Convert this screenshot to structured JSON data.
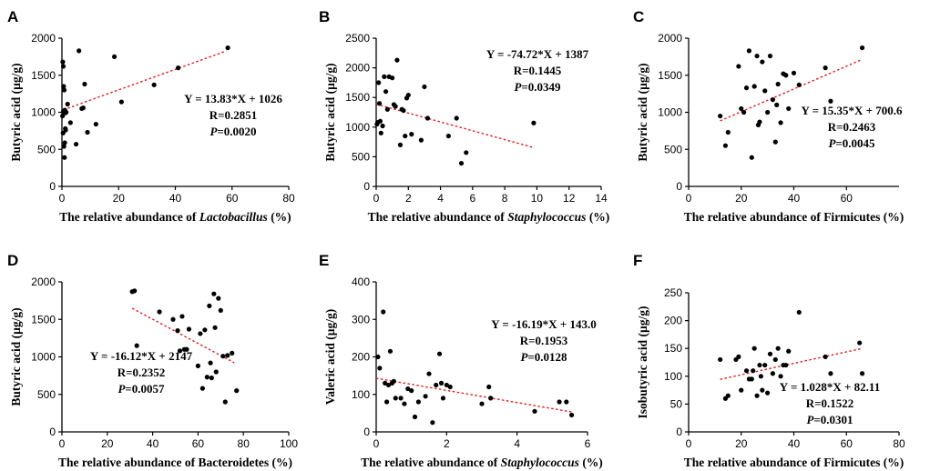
{
  "chart_data": [
    {
      "type": "scatter",
      "panel": "A",
      "xlabel_parts": [
        {
          "text": "The relative abundance of ",
          "italic": false
        },
        {
          "text": "Lactobacillus",
          "italic": true
        },
        {
          "text": " (%)",
          "italic": false
        }
      ],
      "ylabel": "Butyric acid (µg/g)",
      "xlim": [
        0,
        80
      ],
      "ylim": [
        0,
        2000
      ],
      "xticks": [
        0,
        20,
        40,
        60,
        80
      ],
      "yticks": [
        0,
        500,
        1000,
        1500,
        2000
      ],
      "equation": "Y = 13.83*X + 1026",
      "r_text": "R=0.2851",
      "p_value": "=0.0020",
      "fit": {
        "slope": 13.83,
        "intercept": 1026,
        "x_range": [
          0.5,
          58
        ]
      },
      "x": [
        0.3,
        0.5,
        0.6,
        0.8,
        1.0,
        1.1,
        1.2,
        0.4,
        0.7,
        0.9,
        1.5,
        0.2,
        2.0,
        1.0,
        3.0,
        5.0,
        6.0,
        7.0,
        7.5,
        8.0,
        9.0,
        12.0,
        18.5,
        21.0,
        32.5,
        41.0,
        58.5,
        0.5,
        1.3
      ],
      "y": [
        1680,
        1620,
        1350,
        1300,
        1030,
        990,
        780,
        720,
        540,
        390,
        1000,
        950,
        1110,
        590,
        860,
        570,
        1830,
        1050,
        1060,
        1380,
        730,
        840,
        1750,
        1140,
        1370,
        1600,
        1870,
        1010,
        760
      ]
    },
    {
      "type": "scatter",
      "panel": "B",
      "xlabel_parts": [
        {
          "text": "The relative abundance of ",
          "italic": false
        },
        {
          "text": "Staphylococcus",
          "italic": true
        },
        {
          "text": " (%)",
          "italic": false
        }
      ],
      "ylabel": "Butyric acid (µg/g)",
      "xlim": [
        0,
        14
      ],
      "ylim": [
        0,
        2500
      ],
      "xticks": [
        0,
        2,
        4,
        6,
        8,
        10,
        12,
        14
      ],
      "yticks": [
        0,
        500,
        1000,
        1500,
        2000,
        2500
      ],
      "equation": "Y = -74.72*X + 1387",
      "r_text": "R=0.1445",
      "p_value": "=0.0349",
      "fit": {
        "slope": -74.72,
        "intercept": 1387,
        "x_range": [
          0,
          9.8
        ]
      },
      "x": [
        0.05,
        0.1,
        0.15,
        0.2,
        0.25,
        0.3,
        0.5,
        0.6,
        0.7,
        0.8,
        1.0,
        1.2,
        1.3,
        1.5,
        1.6,
        1.7,
        1.8,
        1.9,
        2.0,
        2.2,
        2.8,
        3.0,
        3.2,
        4.5,
        5.0,
        5.3,
        5.6,
        9.8,
        0.4,
        1.1
      ],
      "y": [
        1050,
        1080,
        1750,
        1400,
        1100,
        900,
        1850,
        1600,
        1300,
        1850,
        1830,
        1350,
        2130,
        700,
        1300,
        1280,
        850,
        1490,
        1540,
        880,
        780,
        1680,
        1150,
        850,
        1150,
        390,
        570,
        1070,
        1020,
        1380
      ]
    },
    {
      "type": "scatter",
      "panel": "C",
      "xlabel_parts": [
        {
          "text": "The relative abundance of Firmicutes (%)",
          "italic": false
        }
      ],
      "ylabel": "Butyric acid (µg/g)",
      "xlim": [
        0,
        80
      ],
      "ylim": [
        0,
        2000
      ],
      "xticks": [
        0,
        20,
        40,
        60
      ],
      "yticks": [
        0,
        500,
        1000,
        1500,
        2000
      ],
      "equation": "Y = 15.35*X + 700.6",
      "r_text": "R=0.2463",
      "p_value": "=0.0045",
      "fit": {
        "slope": 15.35,
        "intercept": 700.6,
        "x_range": [
          12,
          66
        ]
      },
      "x": [
        12,
        14,
        15,
        19,
        20,
        22,
        23,
        24,
        25,
        26,
        26.5,
        27,
        28,
        29,
        30,
        31,
        32,
        33,
        34,
        35,
        36,
        37,
        38,
        40,
        42,
        52,
        54,
        66,
        21,
        33.5
      ],
      "y": [
        950,
        550,
        730,
        1620,
        1050,
        1330,
        1830,
        390,
        1350,
        1760,
        830,
        870,
        1680,
        1290,
        1000,
        1760,
        1170,
        600,
        1380,
        860,
        1520,
        1500,
        1050,
        1530,
        1370,
        1600,
        1150,
        1870,
        1000,
        1100
      ]
    },
    {
      "type": "scatter",
      "panel": "D",
      "xlabel_parts": [
        {
          "text": "The relative abundance of Bacteroidetes (%)",
          "italic": false
        }
      ],
      "ylabel": "Butyric acid (µg/g)",
      "xlim": [
        0,
        100
      ],
      "ylim": [
        0,
        2000
      ],
      "xticks": [
        0,
        20,
        40,
        60,
        80,
        100
      ],
      "yticks": [
        0,
        500,
        1000,
        1500,
        2000
      ],
      "equation": "Y = -16.12*X + 2147",
      "r_text": "R=0.2352",
      "p_value": "=0.0057",
      "fit": {
        "slope": -16.12,
        "intercept": 2147,
        "x_range": [
          31,
          76
        ]
      },
      "x": [
        31,
        32,
        33,
        43,
        49,
        51,
        52,
        53,
        54,
        55,
        56,
        60,
        62,
        63,
        64,
        65,
        66,
        67,
        67.5,
        68,
        69,
        70,
        71,
        72,
        73,
        75,
        77,
        61,
        65.5
      ],
      "y": [
        1870,
        1880,
        1150,
        1600,
        1500,
        1350,
        1080,
        1540,
        1100,
        1100,
        1370,
        880,
        580,
        1360,
        730,
        1680,
        720,
        1840,
        1390,
        800,
        1780,
        1620,
        1010,
        400,
        1020,
        1050,
        550,
        1310,
        920
      ]
    },
    {
      "type": "scatter",
      "panel": "E",
      "xlabel_parts": [
        {
          "text": "The relative abundance of ",
          "italic": false
        },
        {
          "text": "Staphylococcus",
          "italic": true
        },
        {
          "text": " (%)",
          "italic": false
        }
      ],
      "ylabel": "Valeric acid (µg/g)",
      "xlim": [
        0,
        6
      ],
      "ylim": [
        0,
        400
      ],
      "xticks": [
        0,
        2,
        4,
        6
      ],
      "yticks": [
        0,
        100,
        200,
        300,
        400
      ],
      "equation": "Y = -16.19*X + 143.0",
      "r_text": "R=0.1953",
      "p_value": "=0.0128",
      "fit": {
        "slope": -16.19,
        "intercept": 143.0,
        "x_range": [
          0,
          5.55
        ]
      },
      "x": [
        0.05,
        0.1,
        0.2,
        0.25,
        0.3,
        0.35,
        0.4,
        0.45,
        0.5,
        0.55,
        0.7,
        0.8,
        0.9,
        1.1,
        1.2,
        1.4,
        1.5,
        1.6,
        1.7,
        1.8,
        1.85,
        1.9,
        2.0,
        2.1,
        3.0,
        3.2,
        3.25,
        4.5,
        5.2,
        5.4,
        5.55,
        1.0
      ],
      "y": [
        200,
        170,
        320,
        130,
        80,
        125,
        215,
        130,
        135,
        90,
        90,
        75,
        115,
        40,
        80,
        95,
        155,
        25,
        125,
        208,
        130,
        90,
        125,
        120,
        75,
        120,
        90,
        55,
        80,
        80,
        45,
        110
      ]
    },
    {
      "type": "scatter",
      "panel": "F",
      "xlabel_parts": [
        {
          "text": "The relative abundance of Firmicutes (%)",
          "italic": false
        }
      ],
      "ylabel": "Isobutyric acid (µg/g)",
      "xlim": [
        0,
        80
      ],
      "ylim": [
        0,
        250
      ],
      "xticks": [
        0,
        20,
        40,
        60,
        80
      ],
      "yticks": [
        0,
        50,
        100,
        150,
        200,
        250
      ],
      "equation": "Y = 1.028*X + 82.11",
      "r_text": "R=0.1522",
      "p_value": "=0.0301",
      "fit": {
        "slope": 1.028,
        "intercept": 82.11,
        "x_range": [
          12,
          66
        ]
      },
      "x": [
        12,
        14,
        15,
        18,
        19,
        20,
        22,
        23,
        24,
        25,
        26,
        27,
        27.5,
        28,
        29,
        30,
        31,
        32,
        33,
        34,
        35,
        36,
        37,
        38,
        42,
        52,
        54,
        65,
        66,
        24.5
      ],
      "y": [
        130,
        60,
        65,
        130,
        135,
        75,
        110,
        95,
        95,
        150,
        65,
        120,
        100,
        75,
        120,
        70,
        140,
        105,
        130,
        150,
        100,
        120,
        120,
        145,
        215,
        135,
        105,
        160,
        105,
        110
      ]
    }
  ]
}
